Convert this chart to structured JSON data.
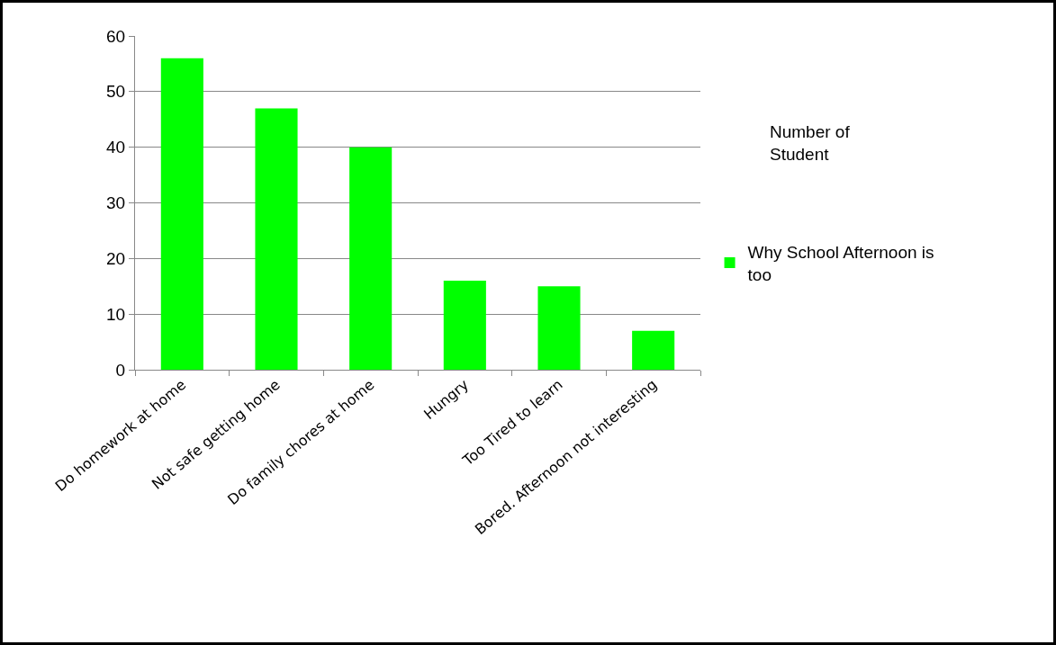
{
  "chart_data": {
    "type": "bar",
    "legend_title": "Number of Student",
    "categories": [
      "Do homework at home",
      "Not safe getting home",
      "Do family chores at home",
      "Hungry",
      "Too Tired to learn",
      "Bored. Afternoon not interesting"
    ],
    "series": [
      {
        "name": "Why School Afternoon is too",
        "color": "#00ff00",
        "values": [
          56,
          47,
          40,
          16,
          15,
          7
        ]
      }
    ],
    "ylim": [
      0,
      60
    ],
    "yticks": [
      0,
      10,
      20,
      30,
      40,
      50,
      60
    ],
    "grid": "y",
    "legend": "right"
  }
}
